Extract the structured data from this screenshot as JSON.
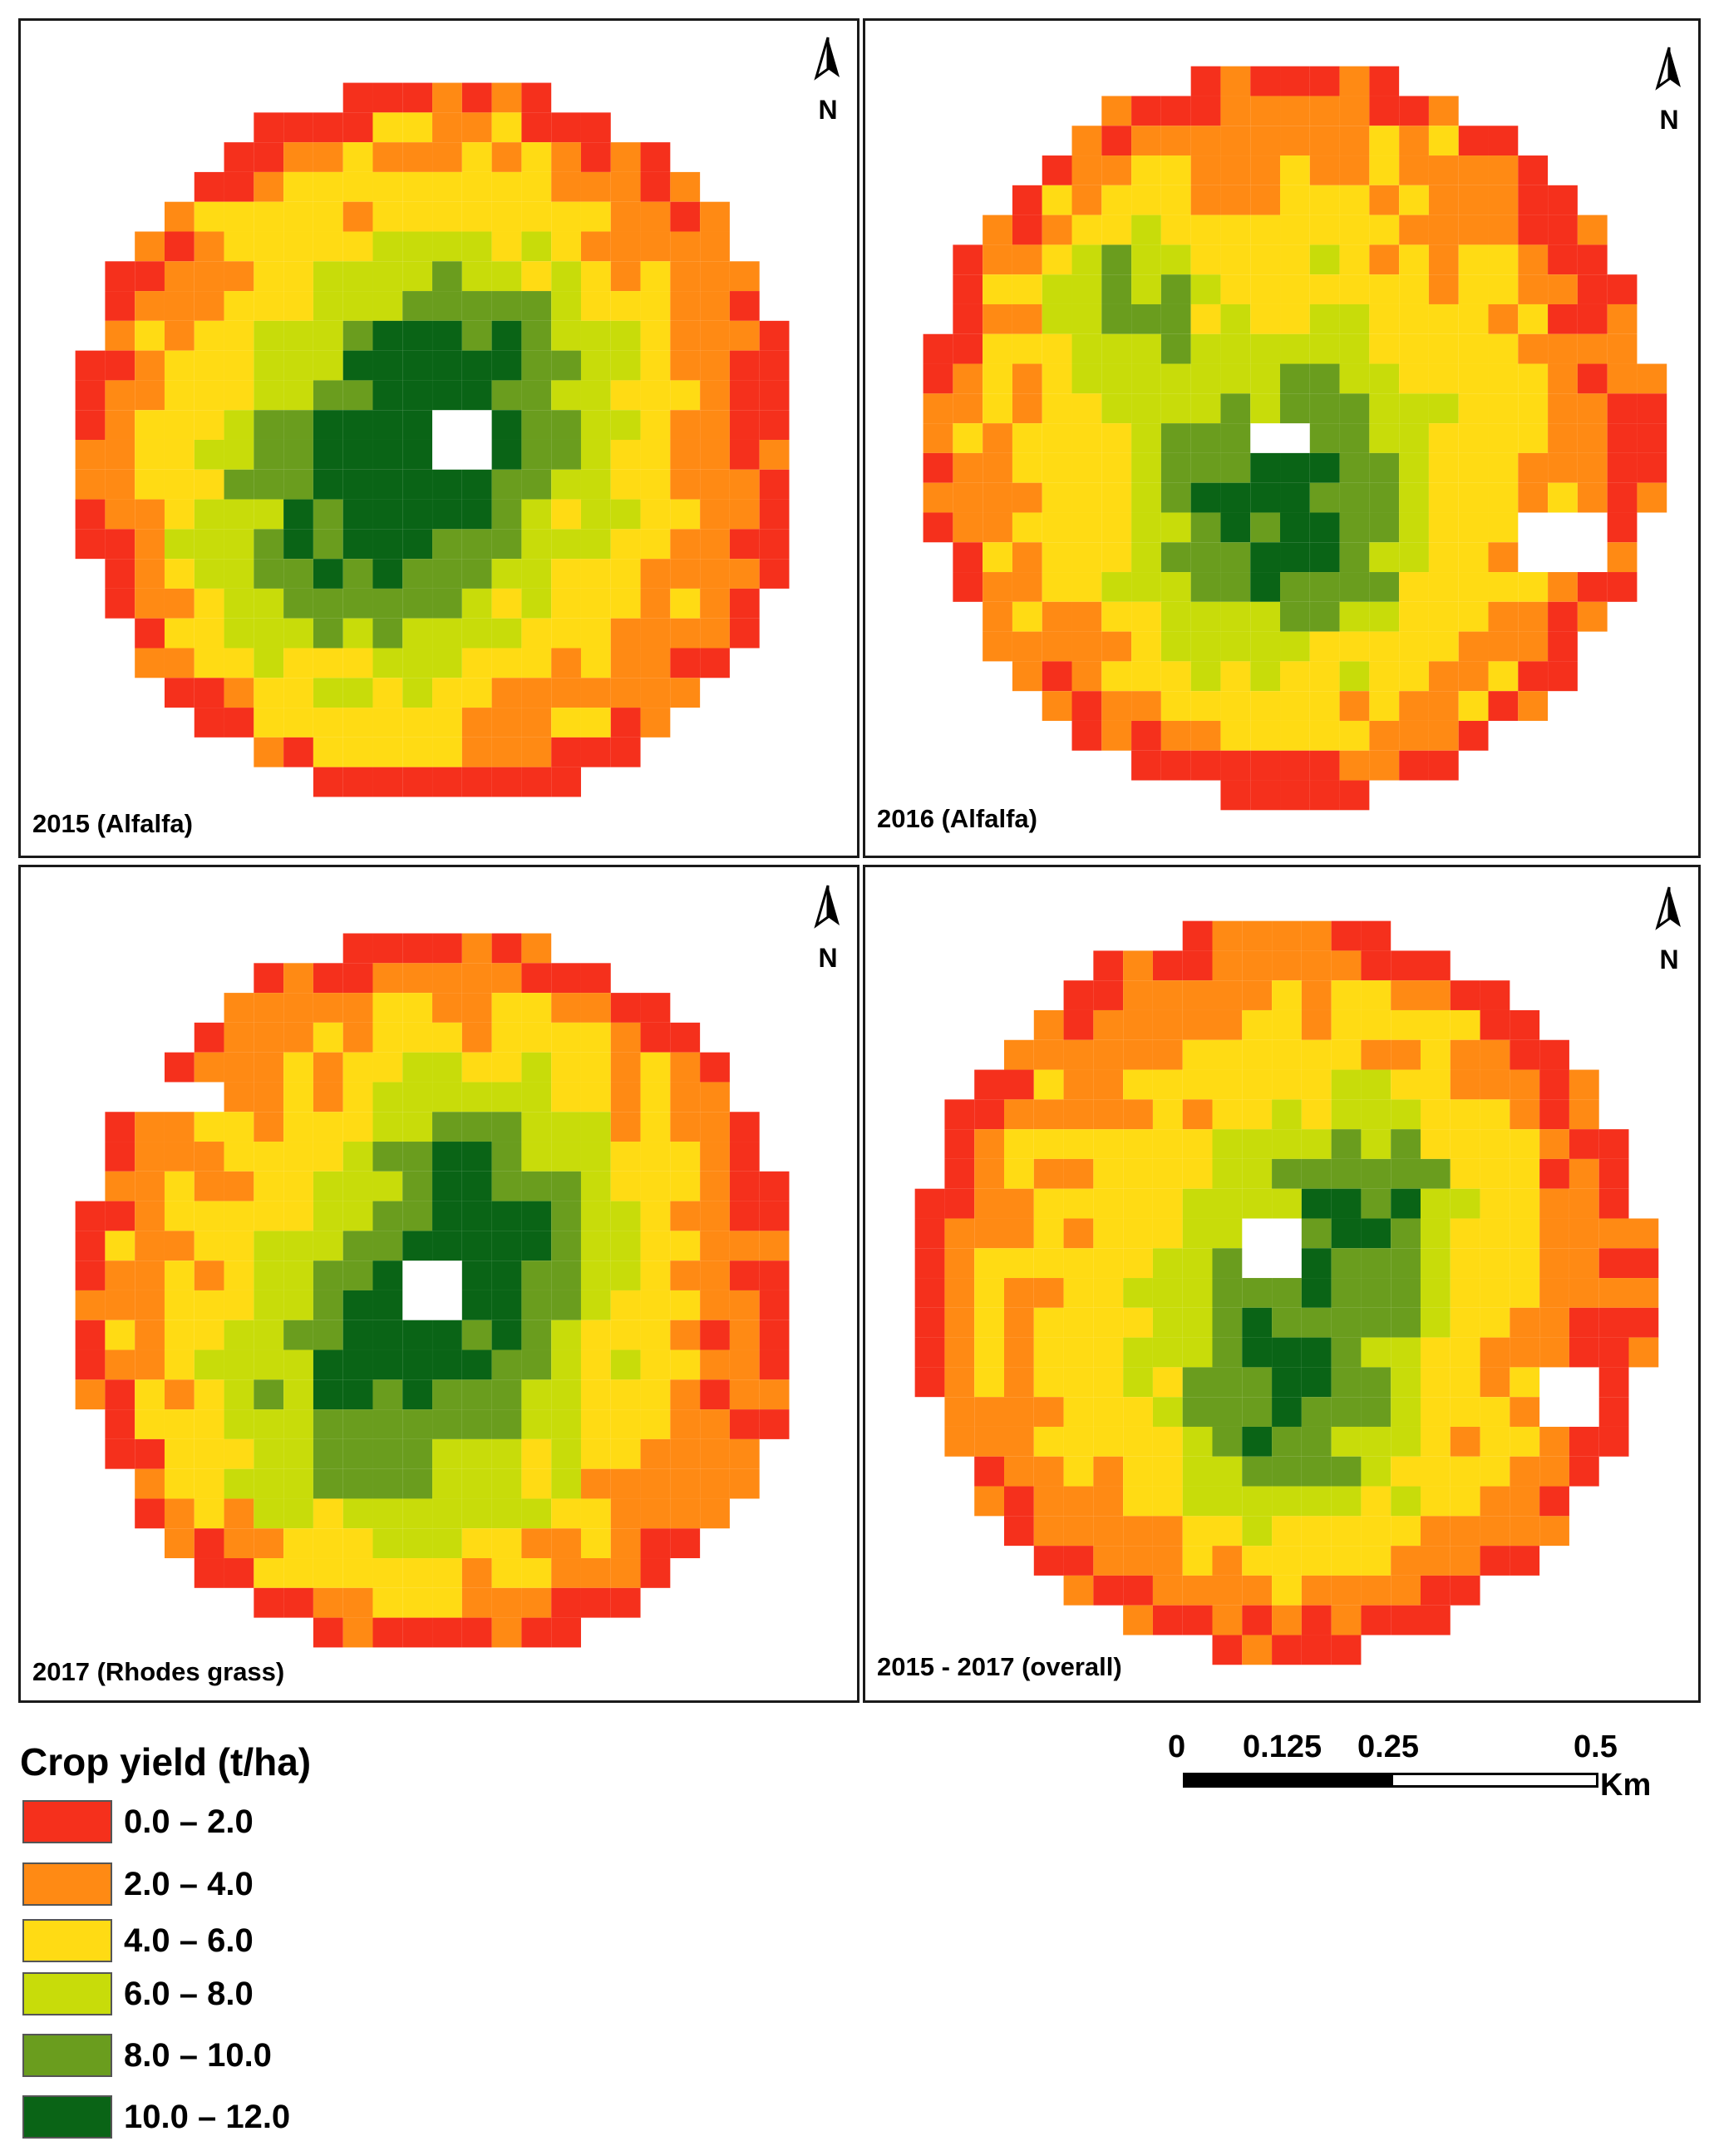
{
  "panels": [
    {
      "label": "2015 (Alfalfa)",
      "north_symbol": "N"
    },
    {
      "label": "2016 (Alfalfa)",
      "north_symbol": "N"
    },
    {
      "label": "2017 (Rhodes grass)",
      "north_symbol": "N"
    },
    {
      "label": "2015 - 2017 (overall)",
      "north_symbol": "N"
    }
  ],
  "legend": {
    "title": "Crop yield (t/ha)",
    "classes": [
      {
        "label": "0.0 – 2.0",
        "color": "#f5301c"
      },
      {
        "label": "2.0 – 4.0",
        "color": "#ff8a14"
      },
      {
        "label": "4.0 – 6.0",
        "color": "#ffdb14"
      },
      {
        "label": "6.0 – 8.0",
        "color": "#c8dc0a"
      },
      {
        "label": "8.0 – 10.0",
        "color": "#6a9d1e"
      },
      {
        "label": "10.0 – 12.0",
        "color": "#0a6416"
      }
    ]
  },
  "scale_bar": {
    "ticks": [
      "0",
      "0.125",
      "0.25",
      "0.5"
    ],
    "unit": "Km"
  }
}
